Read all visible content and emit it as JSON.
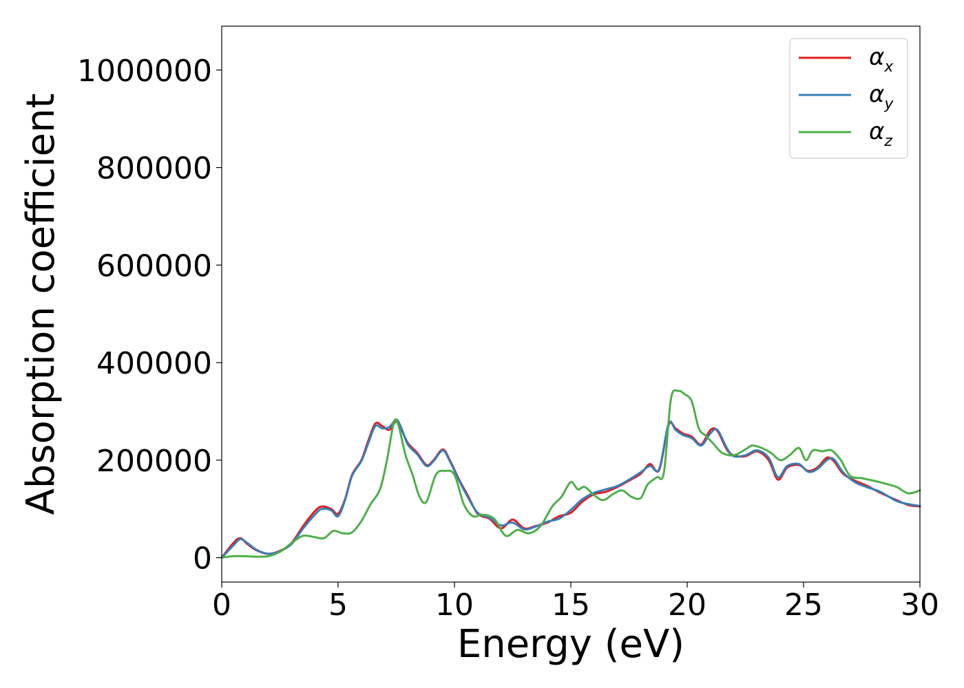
{
  "chart_data": {
    "type": "line",
    "xlabel": "Energy (eV)",
    "ylabel": "Absorption coefficient",
    "xlim": [
      0,
      30
    ],
    "ylim": [
      -50000,
      1090000
    ],
    "xticks": [
      0,
      5,
      10,
      15,
      20,
      25,
      30
    ],
    "yticks": [
      0,
      200000,
      400000,
      600000,
      800000,
      1000000
    ],
    "grid": false,
    "legend_position": "top-right",
    "series": [
      {
        "name": "α",
        "subscript": "x",
        "color": "#e41a1c",
        "x": [
          0,
          0.5,
          0.8,
          1.1,
          1.5,
          2.0,
          2.5,
          3.0,
          3.5,
          4.0,
          4.3,
          4.7,
          5.0,
          5.3,
          5.6,
          6.0,
          6.3,
          6.6,
          6.9,
          7.2,
          7.5,
          7.7,
          8.0,
          8.4,
          8.8,
          9.1,
          9.5,
          9.8,
          10.2,
          10.6,
          11.0,
          11.5,
          12.0,
          12.5,
          13.0,
          13.5,
          14.0,
          14.5,
          15.0,
          15.5,
          16.0,
          16.5,
          17.0,
          17.5,
          18.0,
          18.4,
          18.8,
          19.2,
          19.5,
          19.8,
          20.2,
          20.6,
          21.0,
          21.3,
          21.7,
          22.0,
          22.5,
          23.0,
          23.5,
          23.9,
          24.3,
          24.8,
          25.2,
          25.6,
          26.0,
          26.3,
          26.7,
          27.2,
          27.7,
          28.3,
          29.0,
          29.5,
          30.0
        ],
        "values": [
          0,
          30000,
          40000,
          28000,
          15000,
          8000,
          14000,
          30000,
          65000,
          95000,
          105000,
          100000,
          90000,
          120000,
          170000,
          200000,
          240000,
          275000,
          270000,
          262000,
          280000,
          265000,
          235000,
          215000,
          190000,
          200000,
          222000,
          200000,
          160000,
          125000,
          90000,
          80000,
          60000,
          78000,
          60000,
          65000,
          72000,
          85000,
          92000,
          115000,
          130000,
          135000,
          145000,
          158000,
          172000,
          192000,
          180000,
          272000,
          265000,
          255000,
          248000,
          232000,
          262000,
          260000,
          222000,
          210000,
          208000,
          218000,
          200000,
          160000,
          185000,
          190000,
          178000,
          185000,
          205000,
          198000,
          172000,
          158000,
          148000,
          133000,
          118000,
          108000,
          105000
        ]
      },
      {
        "name": "α",
        "subscript": "y",
        "color": "#377eb8",
        "x": [
          0,
          0.5,
          0.8,
          1.1,
          1.5,
          2.0,
          2.5,
          3.0,
          3.5,
          4.0,
          4.3,
          4.7,
          5.0,
          5.3,
          5.6,
          6.0,
          6.3,
          6.6,
          6.9,
          7.2,
          7.5,
          7.7,
          8.0,
          8.4,
          8.8,
          9.1,
          9.5,
          9.8,
          10.2,
          10.6,
          11.0,
          11.5,
          12.0,
          12.5,
          13.0,
          13.5,
          14.0,
          14.5,
          15.0,
          15.5,
          16.0,
          16.5,
          17.0,
          17.5,
          18.0,
          18.4,
          18.8,
          19.2,
          19.5,
          19.8,
          20.2,
          20.6,
          21.0,
          21.3,
          21.7,
          22.0,
          22.5,
          23.0,
          23.5,
          23.9,
          24.3,
          24.8,
          25.2,
          25.6,
          26.0,
          26.3,
          26.7,
          27.2,
          27.7,
          28.3,
          29.0,
          29.5,
          30.0
        ],
        "values": [
          0,
          25000,
          38000,
          30000,
          16000,
          8000,
          13000,
          28000,
          60000,
          88000,
          100000,
          97000,
          85000,
          118000,
          168000,
          198000,
          235000,
          270000,
          265000,
          268000,
          283000,
          268000,
          232000,
          212000,
          188000,
          198000,
          220000,
          198000,
          158000,
          122000,
          92000,
          82000,
          66000,
          72000,
          58000,
          64000,
          74000,
          80000,
          98000,
          120000,
          133000,
          140000,
          147000,
          160000,
          175000,
          188000,
          182000,
          275000,
          262000,
          252000,
          245000,
          230000,
          255000,
          262000,
          225000,
          208000,
          210000,
          220000,
          205000,
          165000,
          188000,
          192000,
          176000,
          182000,
          200000,
          202000,
          175000,
          155000,
          145000,
          135000,
          116000,
          110000,
          106000
        ]
      },
      {
        "name": "α",
        "subscript": "z",
        "color": "#4daf4a",
        "x": [
          0,
          0.5,
          1.0,
          1.5,
          2.0,
          2.5,
          3.0,
          3.5,
          4.0,
          4.4,
          4.8,
          5.2,
          5.6,
          6.0,
          6.4,
          6.8,
          7.1,
          7.4,
          7.6,
          7.9,
          8.2,
          8.5,
          8.8,
          9.2,
          9.6,
          10.0,
          10.4,
          10.8,
          11.2,
          11.7,
          12.2,
          12.7,
          13.2,
          13.7,
          14.2,
          14.6,
          15.0,
          15.3,
          15.6,
          16.0,
          16.4,
          16.8,
          17.2,
          17.6,
          18.0,
          18.3,
          18.7,
          19.0,
          19.3,
          19.6,
          19.9,
          20.2,
          20.5,
          20.8,
          21.1,
          21.5,
          22.0,
          22.5,
          22.8,
          23.2,
          23.6,
          24.0,
          24.4,
          24.8,
          25.1,
          25.4,
          25.8,
          26.2,
          26.6,
          27.0,
          27.5,
          28.0,
          28.5,
          29.0,
          29.5,
          30.0
        ],
        "values": [
          0,
          3000,
          3000,
          2000,
          3000,
          12000,
          30000,
          45000,
          42000,
          40000,
          55000,
          50000,
          52000,
          75000,
          110000,
          140000,
          200000,
          278000,
          270000,
          210000,
          170000,
          125000,
          115000,
          170000,
          178000,
          170000,
          110000,
          85000,
          88000,
          80000,
          45000,
          57000,
          50000,
          65000,
          105000,
          125000,
          155000,
          140000,
          145000,
          128000,
          118000,
          130000,
          138000,
          125000,
          122000,
          150000,
          165000,
          175000,
          325000,
          342000,
          335000,
          320000,
          265000,
          250000,
          235000,
          215000,
          210000,
          222000,
          230000,
          225000,
          215000,
          200000,
          210000,
          225000,
          200000,
          220000,
          218000,
          220000,
          200000,
          168000,
          163000,
          158000,
          152000,
          145000,
          132000,
          138000
        ]
      }
    ]
  }
}
